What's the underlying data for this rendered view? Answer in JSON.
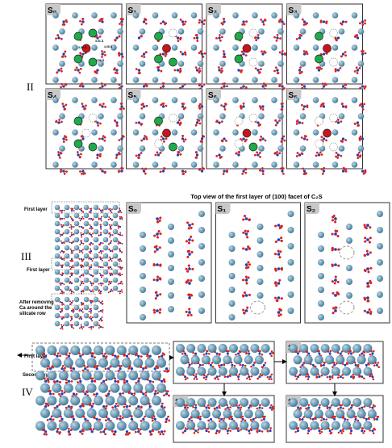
{
  "section_labels": [
    "II",
    "III",
    "IV"
  ],
  "panel_ii": {
    "labels": [
      "S₀",
      "S₁",
      "S₂",
      "S₃",
      "S₄",
      "S₅",
      "S₆",
      "S₆"
    ],
    "distances": [
      "3.51 Å",
      "4.38 Å",
      "3.52 Å",
      "3.56 Å"
    ]
  },
  "panel_iii": {
    "title": "Top view of the first layer of (100) facet of C₂S",
    "side_labels": [
      "First layer",
      "First layer",
      "After removing Ca around the silicate row"
    ],
    "labels": [
      "S₀",
      "S₁",
      "S₂"
    ]
  },
  "panel_iv": {
    "side_labels": [
      "First layer",
      "Second layer"
    ],
    "labels": [
      "S₁",
      "S₀",
      "S₂"
    ]
  }
}
